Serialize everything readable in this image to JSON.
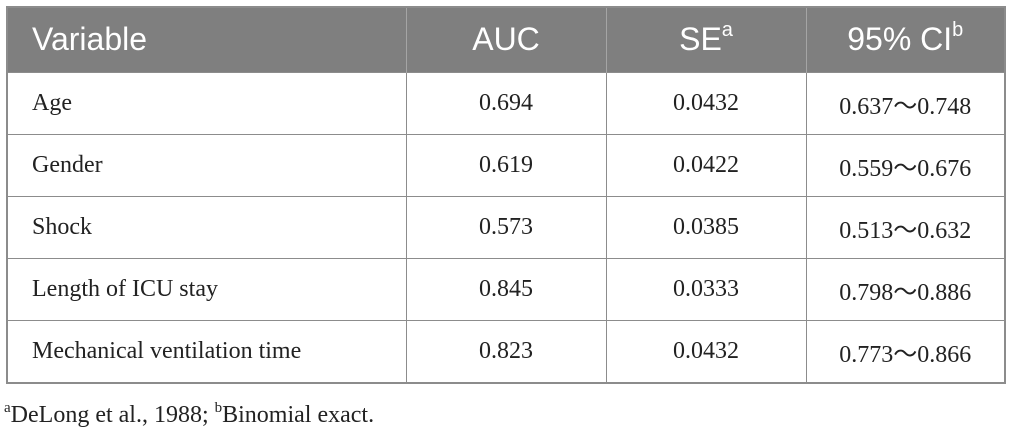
{
  "table": {
    "headers": {
      "variable": "Variable",
      "auc": "AUC",
      "se": "SE",
      "se_sup": "a",
      "ci": "95% CI",
      "ci_sup": "b"
    },
    "rows": [
      {
        "variable": "Age",
        "auc": "0.694",
        "se": "0.0432",
        "ci": "0.637～0.748"
      },
      {
        "variable": "Gender",
        "auc": "0.619",
        "se": "0.0422",
        "ci": "0.559～0.676"
      },
      {
        "variable": "Shock",
        "auc": "0.573",
        "se": "0.0385",
        "ci": "0.513～0.632"
      },
      {
        "variable": "Length of ICU stay",
        "auc": "0.845",
        "se": "0.0333",
        "ci": "0.798～0.886"
      },
      {
        "variable": "Mechanical ventilation time",
        "auc": "0.823",
        "se": "0.0432",
        "ci": "0.773～0.866"
      }
    ]
  },
  "footnote": {
    "a_marker": "a",
    "a_text": "DeLong et al., 1988; ",
    "b_marker": "b",
    "b_text": "Binomial exact."
  },
  "colors": {
    "header_bg": "#7f7f7f",
    "header_text": "#ffffff",
    "border": "#8c8c8c"
  }
}
